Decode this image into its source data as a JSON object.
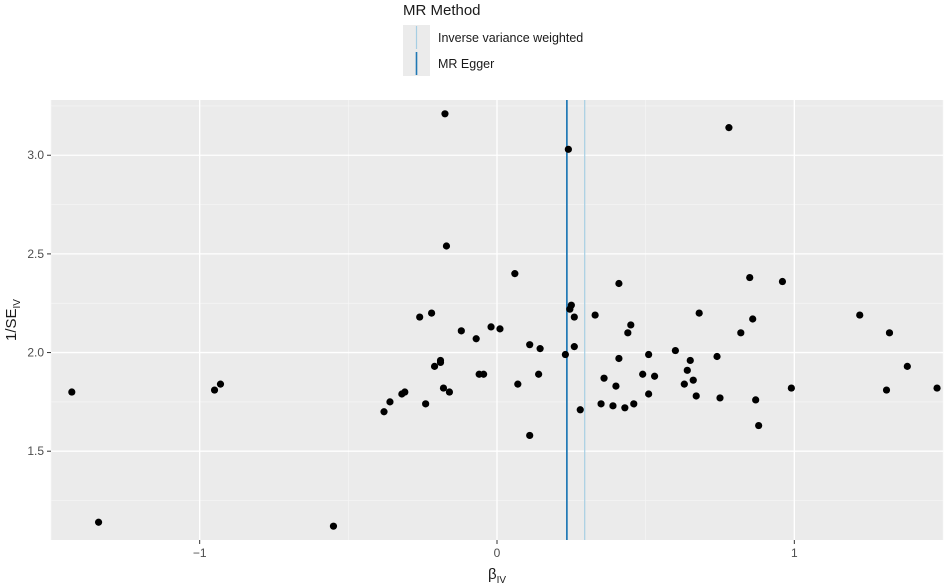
{
  "chart_data": {
    "type": "scatter",
    "xlabel": "β",
    "xlabel_sub": "IV",
    "ylabel": "1/SE",
    "ylabel_sub": "IV",
    "xlim": [
      -1.5,
      1.5
    ],
    "ylim": [
      1.05,
      3.28
    ],
    "x_ticks": [
      -1,
      0,
      1
    ],
    "x_tick_labels": [
      "−1",
      "0",
      "1"
    ],
    "y_ticks": [
      1.5,
      2.0,
      2.5,
      3.0
    ],
    "y_tick_labels": [
      "1.5",
      "2.0",
      "2.5",
      "3.0"
    ],
    "grid": true,
    "legend": {
      "title": "MR Method",
      "position": "top",
      "items": [
        {
          "label": "Inverse variance weighted",
          "color": "#a6cee3"
        },
        {
          "label": "MR Egger",
          "color": "#1f78b4"
        }
      ]
    },
    "vlines": [
      {
        "method": "MR Egger",
        "x": 0.235,
        "color": "#1f78b4"
      },
      {
        "method": "Inverse variance weighted",
        "x": 0.295,
        "color": "#a6cee3"
      }
    ],
    "points": [
      {
        "x": -1.43,
        "y": 1.8
      },
      {
        "x": -1.34,
        "y": 1.14
      },
      {
        "x": -0.95,
        "y": 1.81
      },
      {
        "x": -0.93,
        "y": 1.84
      },
      {
        "x": -0.55,
        "y": 1.12
      },
      {
        "x": -0.38,
        "y": 1.7
      },
      {
        "x": -0.36,
        "y": 1.75
      },
      {
        "x": -0.32,
        "y": 1.79
      },
      {
        "x": -0.31,
        "y": 1.8
      },
      {
        "x": -0.26,
        "y": 2.18
      },
      {
        "x": -0.24,
        "y": 1.74
      },
      {
        "x": -0.22,
        "y": 2.2
      },
      {
        "x": -0.21,
        "y": 1.93
      },
      {
        "x": -0.19,
        "y": 1.95
      },
      {
        "x": -0.19,
        "y": 1.96
      },
      {
        "x": -0.18,
        "y": 1.82
      },
      {
        "x": -0.175,
        "y": 3.21
      },
      {
        "x": -0.17,
        "y": 2.54
      },
      {
        "x": -0.16,
        "y": 1.8
      },
      {
        "x": -0.12,
        "y": 2.11
      },
      {
        "x": -0.07,
        "y": 2.07
      },
      {
        "x": -0.06,
        "y": 1.89
      },
      {
        "x": -0.045,
        "y": 1.89
      },
      {
        "x": -0.02,
        "y": 2.13
      },
      {
        "x": 0.01,
        "y": 2.12
      },
      {
        "x": 0.06,
        "y": 2.4
      },
      {
        "x": 0.07,
        "y": 1.84
      },
      {
        "x": 0.11,
        "y": 1.58
      },
      {
        "x": 0.11,
        "y": 2.04
      },
      {
        "x": 0.14,
        "y": 1.89
      },
      {
        "x": 0.145,
        "y": 2.02
      },
      {
        "x": 0.23,
        "y": 1.99
      },
      {
        "x": 0.24,
        "y": 3.03
      },
      {
        "x": 0.245,
        "y": 2.22
      },
      {
        "x": 0.25,
        "y": 2.24
      },
      {
        "x": 0.26,
        "y": 2.18
      },
      {
        "x": 0.26,
        "y": 2.03
      },
      {
        "x": 0.28,
        "y": 1.71
      },
      {
        "x": 0.33,
        "y": 2.19
      },
      {
        "x": 0.35,
        "y": 1.74
      },
      {
        "x": 0.36,
        "y": 1.87
      },
      {
        "x": 0.39,
        "y": 1.73
      },
      {
        "x": 0.4,
        "y": 1.83
      },
      {
        "x": 0.41,
        "y": 1.97
      },
      {
        "x": 0.41,
        "y": 2.35
      },
      {
        "x": 0.43,
        "y": 1.72
      },
      {
        "x": 0.44,
        "y": 2.1
      },
      {
        "x": 0.45,
        "y": 2.14
      },
      {
        "x": 0.46,
        "y": 1.74
      },
      {
        "x": 0.49,
        "y": 1.89
      },
      {
        "x": 0.51,
        "y": 1.79
      },
      {
        "x": 0.51,
        "y": 1.99
      },
      {
        "x": 0.53,
        "y": 1.88
      },
      {
        "x": 0.6,
        "y": 2.01
      },
      {
        "x": 0.63,
        "y": 1.84
      },
      {
        "x": 0.64,
        "y": 1.91
      },
      {
        "x": 0.65,
        "y": 1.96
      },
      {
        "x": 0.66,
        "y": 1.86
      },
      {
        "x": 0.67,
        "y": 1.78
      },
      {
        "x": 0.68,
        "y": 2.2
      },
      {
        "x": 0.74,
        "y": 1.98
      },
      {
        "x": 0.75,
        "y": 1.77
      },
      {
        "x": 0.78,
        "y": 3.14
      },
      {
        "x": 0.82,
        "y": 2.1
      },
      {
        "x": 0.85,
        "y": 2.38
      },
      {
        "x": 0.86,
        "y": 2.17
      },
      {
        "x": 0.87,
        "y": 1.76
      },
      {
        "x": 0.88,
        "y": 1.63
      },
      {
        "x": 0.96,
        "y": 2.36
      },
      {
        "x": 0.99,
        "y": 1.82
      },
      {
        "x": 1.22,
        "y": 2.19
      },
      {
        "x": 1.31,
        "y": 1.81
      },
      {
        "x": 1.32,
        "y": 2.1
      },
      {
        "x": 1.38,
        "y": 1.93
      },
      {
        "x": 1.48,
        "y": 1.82
      }
    ]
  }
}
